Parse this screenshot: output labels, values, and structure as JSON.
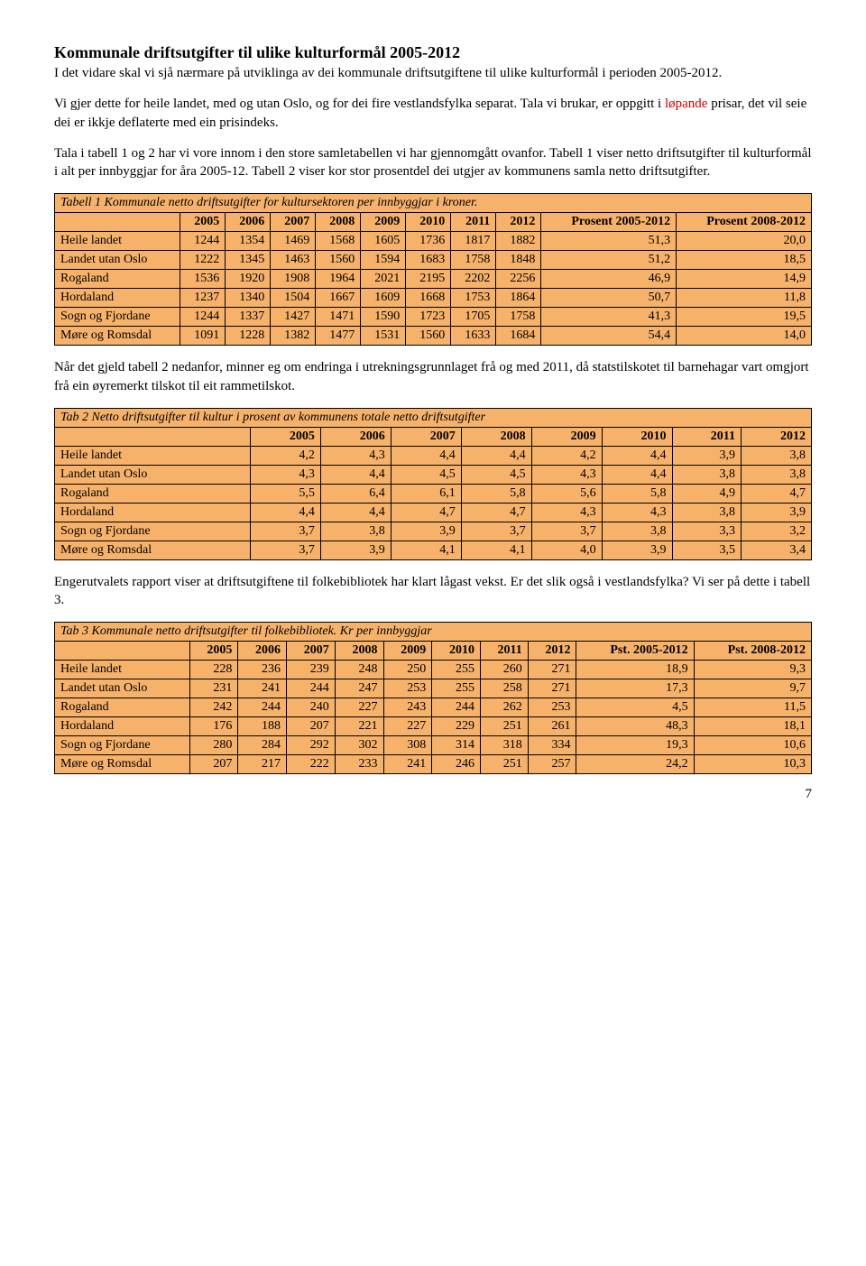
{
  "title": "Kommunale driftsutgifter til ulike kulturformål 2005-2012",
  "intro_p1": "I det vidare skal vi sjå nærmare på utviklinga av dei kommunale driftsutgiftene til ulike kulturformål i perioden 2005-2012.",
  "intro_p2a": "Vi gjer dette for heile landet, med og utan Oslo, og for dei fire vestlandsfylka separat. Tala vi brukar, er oppgitt i ",
  "intro_p2_red": "løpande",
  "intro_p2b": " prisar, det vil seie dei er ikkje deflaterte med ein prisindeks.",
  "intro_p3": "Tala i tabell 1 og 2 har vi vore innom i den store samletabellen vi har gjennomgått ovanfor. Tabell 1 viser netto driftsutgifter til kulturformål i alt per innbyggjar for åra 2005-12. Tabell 2 viser kor stor prosentdel dei utgjer av kommunens samla netto driftsutgifter.",
  "table1": {
    "caption": "Tabell 1 Kommunale netto driftsutgifter for kultursektoren per innbyggjar i kroner.",
    "years": [
      "2005",
      "2006",
      "2007",
      "2008",
      "2009",
      "2010",
      "2011",
      "2012"
    ],
    "extra_headers": [
      "Prosent 2005-2012",
      "Prosent 2008-2012"
    ],
    "rows": [
      {
        "label": "Heile landet",
        "v": [
          "1244",
          "1354",
          "1469",
          "1568",
          "1605",
          "1736",
          "1817",
          "1882",
          "51,3",
          "20,0"
        ]
      },
      {
        "label": "Landet utan Oslo",
        "v": [
          "1222",
          "1345",
          "1463",
          "1560",
          "1594",
          "1683",
          "1758",
          "1848",
          "51,2",
          "18,5"
        ]
      },
      {
        "label": "Rogaland",
        "v": [
          "1536",
          "1920",
          "1908",
          "1964",
          "2021",
          "2195",
          "2202",
          "2256",
          "46,9",
          "14,9"
        ]
      },
      {
        "label": "Hordaland",
        "v": [
          "1237",
          "1340",
          "1504",
          "1667",
          "1609",
          "1668",
          "1753",
          "1864",
          "50,7",
          "11,8"
        ]
      },
      {
        "label": "Sogn og Fjordane",
        "v": [
          "1244",
          "1337",
          "1427",
          "1471",
          "1590",
          "1723",
          "1705",
          "1758",
          "41,3",
          "19,5"
        ]
      },
      {
        "label": "Møre og Romsdal",
        "v": [
          "1091",
          "1228",
          "1382",
          "1477",
          "1531",
          "1560",
          "1633",
          "1684",
          "54,4",
          "14,0"
        ]
      }
    ]
  },
  "mid_p1": "Når det gjeld tabell 2 nedanfor, minner eg om endringa i utrekningsgrunnlaget frå og med 2011, då statstilskotet til barnehagar vart omgjort frå ein øyremerkt tilskot til eit rammetilskot.",
  "table2": {
    "caption": "Tab 2 Netto driftsutgifter til kultur i prosent av kommunens totale netto driftsutgifter",
    "years": [
      "2005",
      "2006",
      "2007",
      "2008",
      "2009",
      "2010",
      "2011",
      "2012"
    ],
    "rows": [
      {
        "label": "Heile landet",
        "v": [
          "4,2",
          "4,3",
          "4,4",
          "4,4",
          "4,2",
          "4,4",
          "3,9",
          "3,8"
        ]
      },
      {
        "label": "Landet utan Oslo",
        "v": [
          "4,3",
          "4,4",
          "4,5",
          "4,5",
          "4,3",
          "4,4",
          "3,8",
          "3,8"
        ]
      },
      {
        "label": "Rogaland",
        "v": [
          "5,5",
          "6,4",
          "6,1",
          "5,8",
          "5,6",
          "5,8",
          "4,9",
          "4,7"
        ]
      },
      {
        "label": "Hordaland",
        "v": [
          "4,4",
          "4,4",
          "4,7",
          "4,7",
          "4,3",
          "4,3",
          "3,8",
          "3,9"
        ]
      },
      {
        "label": "Sogn og Fjordane",
        "v": [
          "3,7",
          "3,8",
          "3,9",
          "3,7",
          "3,7",
          "3,8",
          "3,3",
          "3,2"
        ]
      },
      {
        "label": "Møre og Romsdal",
        "v": [
          "3,7",
          "3,9",
          "4,1",
          "4,1",
          "4,0",
          "3,9",
          "3,5",
          "3,4"
        ]
      }
    ]
  },
  "mid_p2": "Engerutvalets rapport viser at driftsutgiftene til folkebibliotek har klart lågast vekst. Er det slik også i vestlandsfylka?  Vi ser på dette i tabell 3.",
  "table3": {
    "caption": "Tab 3 Kommunale netto driftsutgifter til folkebibliotek. Kr per innbyggjar",
    "years": [
      "2005",
      "2006",
      "2007",
      "2008",
      "2009",
      "2010",
      "2011",
      "2012"
    ],
    "extra_headers": [
      "Pst. 2005-2012",
      "Pst. 2008-2012"
    ],
    "rows": [
      {
        "label": "Heile landet",
        "v": [
          "228",
          "236",
          "239",
          "248",
          "250",
          "255",
          "260",
          "271",
          "18,9",
          "9,3"
        ]
      },
      {
        "label": "Landet utan Oslo",
        "v": [
          "231",
          "241",
          "244",
          "247",
          "253",
          "255",
          "258",
          "271",
          "17,3",
          "9,7"
        ]
      },
      {
        "label": "Rogaland",
        "v": [
          "242",
          "244",
          "240",
          "227",
          "243",
          "244",
          "262",
          "253",
          "4,5",
          "11,5"
        ]
      },
      {
        "label": "Hordaland",
        "v": [
          "176",
          "188",
          "207",
          "221",
          "227",
          "229",
          "251",
          "261",
          "48,3",
          "18,1"
        ]
      },
      {
        "label": "Sogn og Fjordane",
        "v": [
          "280",
          "284",
          "292",
          "302",
          "308",
          "314",
          "318",
          "334",
          "19,3",
          "10,6"
        ]
      },
      {
        "label": "Møre og Romsdal",
        "v": [
          "207",
          "217",
          "222",
          "233",
          "241",
          "246",
          "251",
          "257",
          "24,2",
          "10,3"
        ]
      }
    ]
  },
  "pagenum": "7",
  "colors": {
    "cell_bg": "#f6b26b",
    "red_text": "#cc0000"
  }
}
